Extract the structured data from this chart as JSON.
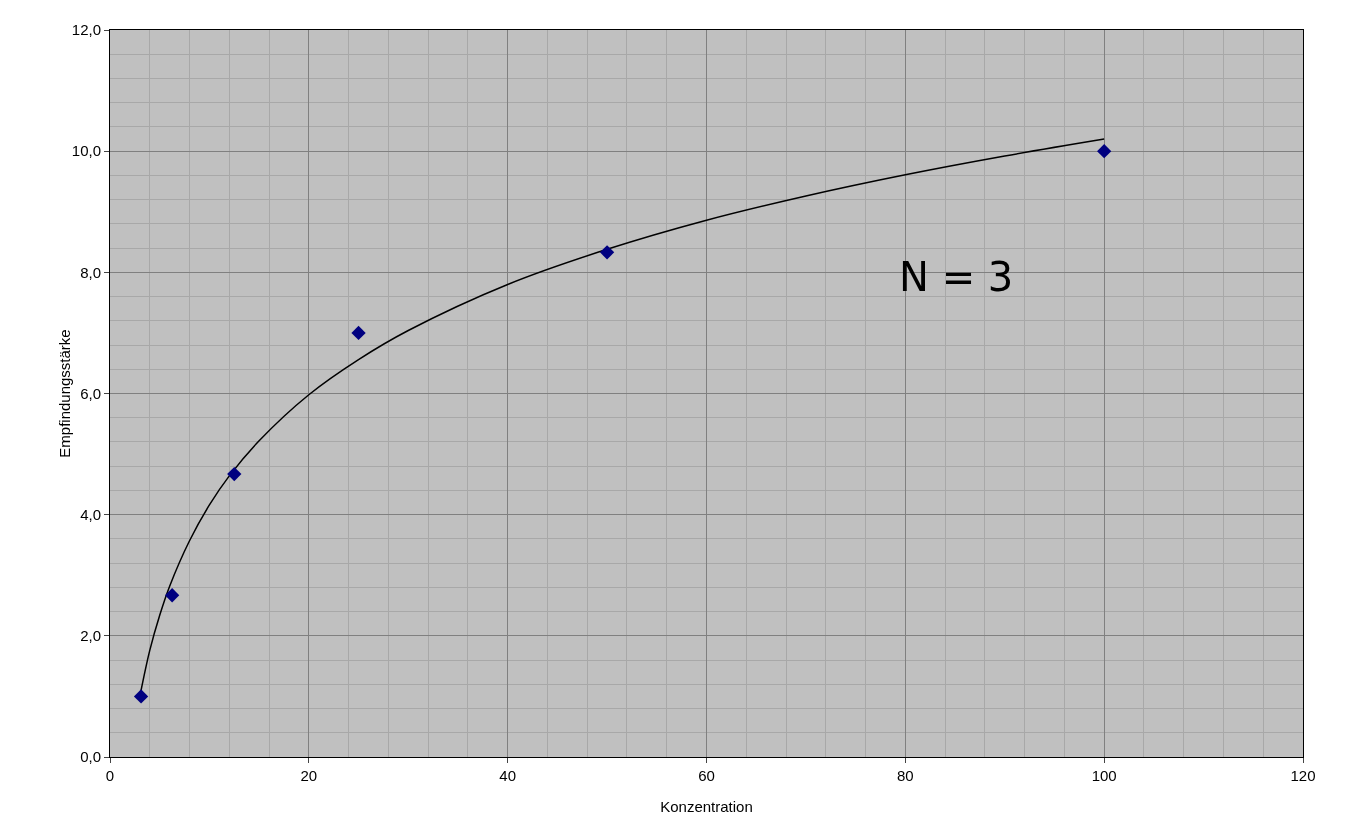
{
  "chart_data": {
    "type": "scatter",
    "xlabel": "Konzentration",
    "ylabel": "Empfindungsstärke",
    "xlim": [
      0,
      120
    ],
    "xticks": [
      0,
      20,
      40,
      60,
      80,
      100,
      120
    ],
    "ylim": [
      0,
      12
    ],
    "yticks": [
      {
        "value": 0,
        "label": "0,0"
      },
      {
        "value": 2,
        "label": "2,0"
      },
      {
        "value": 4,
        "label": "4,0"
      },
      {
        "value": 6,
        "label": "6,0"
      },
      {
        "value": 8,
        "label": "8,0"
      },
      {
        "value": 10,
        "label": "10,0"
      },
      {
        "value": 12,
        "label": "12,0"
      }
    ],
    "grid": true,
    "legend": false,
    "line_style": "solid",
    "annotations": [
      "N = 3"
    ],
    "series": [
      {
        "marker": "diamond",
        "color": "#000080",
        "x": [
          3.125,
          6.25,
          12.5,
          25,
          50,
          100
        ],
        "values": [
          1.0,
          2.67,
          4.67,
          7.0,
          8.33,
          10.0
        ]
      },
      {
        "type": "line",
        "marker": "none",
        "color": "#000000",
        "x": [
          3,
          4,
          5,
          6,
          8,
          10,
          12,
          15,
          20,
          25,
          30,
          40,
          50,
          60,
          70,
          80,
          90,
          100
        ],
        "values": [
          1.0,
          1.76,
          2.34,
          2.82,
          3.57,
          4.16,
          4.64,
          5.22,
          5.98,
          6.56,
          7.04,
          7.8,
          8.38,
          8.86,
          9.26,
          9.61,
          9.92,
          10.2
        ]
      }
    ]
  }
}
